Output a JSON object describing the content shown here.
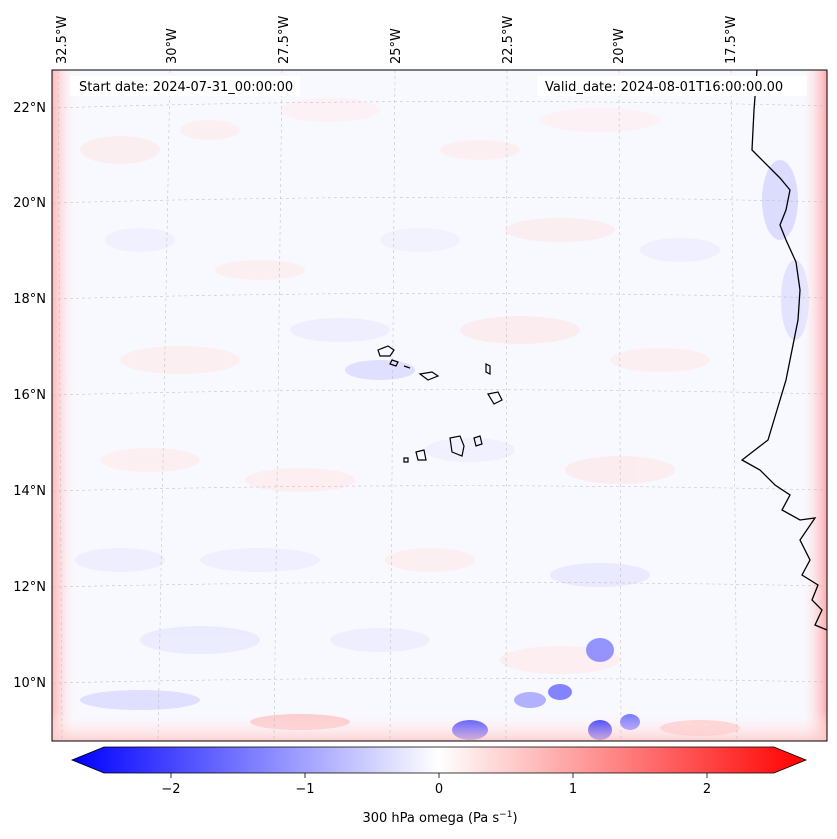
{
  "header": {
    "start_date": "Start date: 2024-07-31_00:00:00",
    "valid_date": "Valid_date: 2024-08-01T16:00:00.00"
  },
  "map": {
    "lon_labels": [
      "32.5°W",
      "30°W",
      "27.5°W",
      "25°W",
      "22.5°W",
      "20°W",
      "17.5°W"
    ],
    "lat_labels": [
      "22°N",
      "20°N",
      "18°N",
      "16°N",
      "14°N",
      "12°N",
      "10°N"
    ],
    "gridlines": true
  },
  "colorbar": {
    "ticks": [
      "−2",
      "−1",
      "0",
      "1",
      "2"
    ],
    "label_main": "300 hPa omega (Pa s",
    "label_sup": "−1",
    "label_close": ")",
    "min": -2.5,
    "max": 2.5,
    "extend": "both",
    "colormap": "bwr",
    "color_low": "#0000ff",
    "color_mid": "#ffffff",
    "color_high": "#ff0000"
  }
}
